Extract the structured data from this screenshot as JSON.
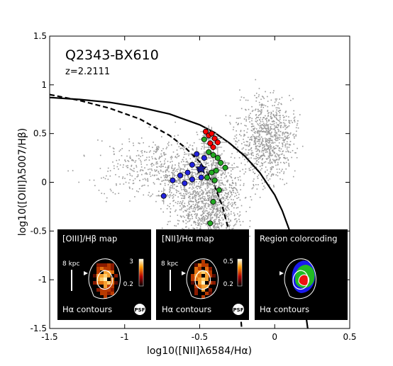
{
  "chart_data": {
    "type": "scatter",
    "title": "Q2343-BX610",
    "subtitle": "z=2.2111",
    "xlabel": "log10([NII]λ6584/Hα)",
    "ylabel": "log10([OIII]λ5007/Hβ)",
    "xlim": [
      -1.5,
      0.5
    ],
    "ylim": [
      -1.5,
      1.5
    ],
    "xticks": [
      "-1.5",
      "-1",
      "-0.5",
      "0",
      "0.5"
    ],
    "yticks": [
      "-1.5",
      "-1",
      "-0.5",
      "0",
      "0.5",
      "1",
      "1.5"
    ],
    "background_points_color": "#999999",
    "curves": [
      {
        "style": "solid",
        "description_curve": "kewley",
        "points": [
          [
            -1.5,
            0.87
          ],
          [
            -1.3,
            0.85
          ],
          [
            -1.1,
            0.82
          ],
          [
            -0.9,
            0.77
          ],
          [
            -0.7,
            0.7
          ],
          [
            -0.5,
            0.59
          ],
          [
            -0.4,
            0.51
          ],
          [
            -0.3,
            0.4
          ],
          [
            -0.2,
            0.27
          ],
          [
            -0.1,
            0.1
          ],
          [
            0,
            -0.13
          ],
          [
            0.05,
            -0.29
          ],
          [
            0.1,
            -0.5
          ],
          [
            0.15,
            -0.81
          ],
          [
            0.2,
            -1.28
          ],
          [
            0.22,
            -1.5
          ]
        ]
      },
      {
        "style": "dashed",
        "description_curve": "kauffmann",
        "points": [
          [
            -1.5,
            0.9
          ],
          [
            -1.3,
            0.84
          ],
          [
            -1.1,
            0.76
          ],
          [
            -0.9,
            0.65
          ],
          [
            -0.7,
            0.48
          ],
          [
            -0.6,
            0.36
          ],
          [
            -0.5,
            0.21
          ],
          [
            -0.45,
            0.1
          ],
          [
            -0.4,
            -0.04
          ],
          [
            -0.35,
            -0.24
          ],
          [
            -0.3,
            -0.53
          ],
          [
            -0.25,
            -0.97
          ],
          [
            -0.22,
            -1.5
          ]
        ]
      }
    ],
    "series": [
      {
        "color": "#ff0000",
        "points": [
          [
            -0.46,
            0.52
          ],
          [
            -0.44,
            0.48
          ],
          [
            -0.42,
            0.5
          ],
          [
            -0.4,
            0.45
          ],
          [
            -0.43,
            0.4
          ],
          [
            -0.38,
            0.41
          ],
          [
            -0.41,
            0.36
          ]
        ]
      },
      {
        "color": "#22aa22",
        "points": [
          [
            -0.47,
            0.44
          ],
          [
            -0.44,
            0.31
          ],
          [
            -0.41,
            0.28
          ],
          [
            -0.38,
            0.25
          ],
          [
            -0.36,
            0.2
          ],
          [
            -0.33,
            0.15
          ],
          [
            -0.39,
            0.12
          ],
          [
            -0.42,
            0.1
          ],
          [
            -0.45,
            0.05
          ],
          [
            -0.4,
            0.02
          ],
          [
            -0.37,
            -0.08
          ],
          [
            -0.41,
            -0.2
          ],
          [
            -0.43,
            -0.42
          ]
        ]
      },
      {
        "color": "#2222dd",
        "points": [
          [
            -0.52,
            0.29
          ],
          [
            -0.47,
            0.25
          ],
          [
            -0.55,
            0.18
          ],
          [
            -0.5,
            0.13
          ],
          [
            -0.58,
            0.1
          ],
          [
            -0.63,
            0.07
          ],
          [
            -0.55,
            0.03
          ],
          [
            -0.49,
            0.05
          ],
          [
            -0.68,
            0.02
          ],
          [
            -0.6,
            -0.01
          ],
          [
            -0.74,
            -0.14
          ]
        ]
      }
    ],
    "star": {
      "x": -0.49,
      "y": 0.14,
      "color": "#1a1a99"
    },
    "insets": [
      {
        "title": "[OIII]/Hβ map",
        "scale": "8 kpc",
        "footer": "Hα contours",
        "psf": "PSF",
        "cbar_max": "3",
        "cbar_min": "0.2"
      },
      {
        "title": "[NII]/Hα map",
        "scale": "8 kpc",
        "footer": "Hα contours",
        "psf": "PSF",
        "cbar_max": "0.5",
        "cbar_min": "0.2"
      },
      {
        "title": "Region colorcoding",
        "footer": "Hα contours"
      }
    ]
  }
}
